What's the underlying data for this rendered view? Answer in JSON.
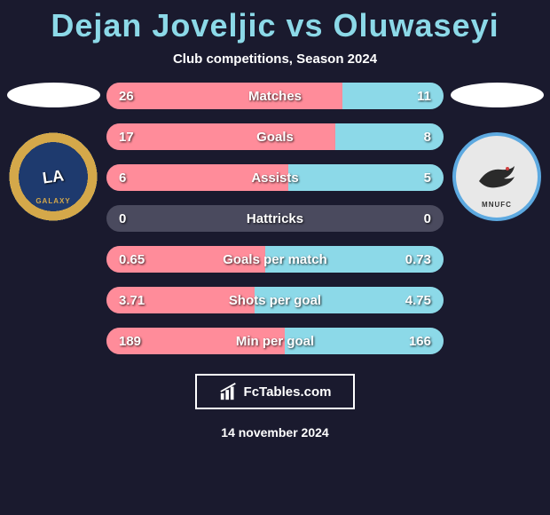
{
  "title": "Dejan Joveljic vs Oluwaseyi",
  "subtitle": "Club competitions, Season 2024",
  "colors": {
    "background": "#1a1a2e",
    "title_color": "#8cd9e8",
    "text_color": "#ffffff",
    "bar_bg": "#4a4a5e",
    "left_bar": "#ff8c9a",
    "right_bar": "#8cd9e8",
    "oval": "#ffffff"
  },
  "player_left": {
    "team_logo": "la-galaxy",
    "logo_main": "LA",
    "logo_sub": "GALAXY"
  },
  "player_right": {
    "team_logo": "minnesota-united",
    "logo_sub": "MNUFC"
  },
  "stats": [
    {
      "label": "Matches",
      "left_val": "26",
      "right_val": "11",
      "left_pct": 70,
      "right_pct": 30
    },
    {
      "label": "Goals",
      "left_val": "17",
      "right_val": "8",
      "left_pct": 68,
      "right_pct": 32
    },
    {
      "label": "Assists",
      "left_val": "6",
      "right_val": "5",
      "left_pct": 54,
      "right_pct": 46
    },
    {
      "label": "Hattricks",
      "left_val": "0",
      "right_val": "0",
      "left_pct": 0,
      "right_pct": 0
    },
    {
      "label": "Goals per match",
      "left_val": "0.65",
      "right_val": "0.73",
      "left_pct": 47,
      "right_pct": 53
    },
    {
      "label": "Shots per goal",
      "left_val": "3.71",
      "right_val": "4.75",
      "left_pct": 44,
      "right_pct": 56
    },
    {
      "label": "Min per goal",
      "left_val": "189",
      "right_val": "166",
      "left_pct": 53,
      "right_pct": 47
    }
  ],
  "branding": "FcTables.com",
  "date": "14 november 2024"
}
